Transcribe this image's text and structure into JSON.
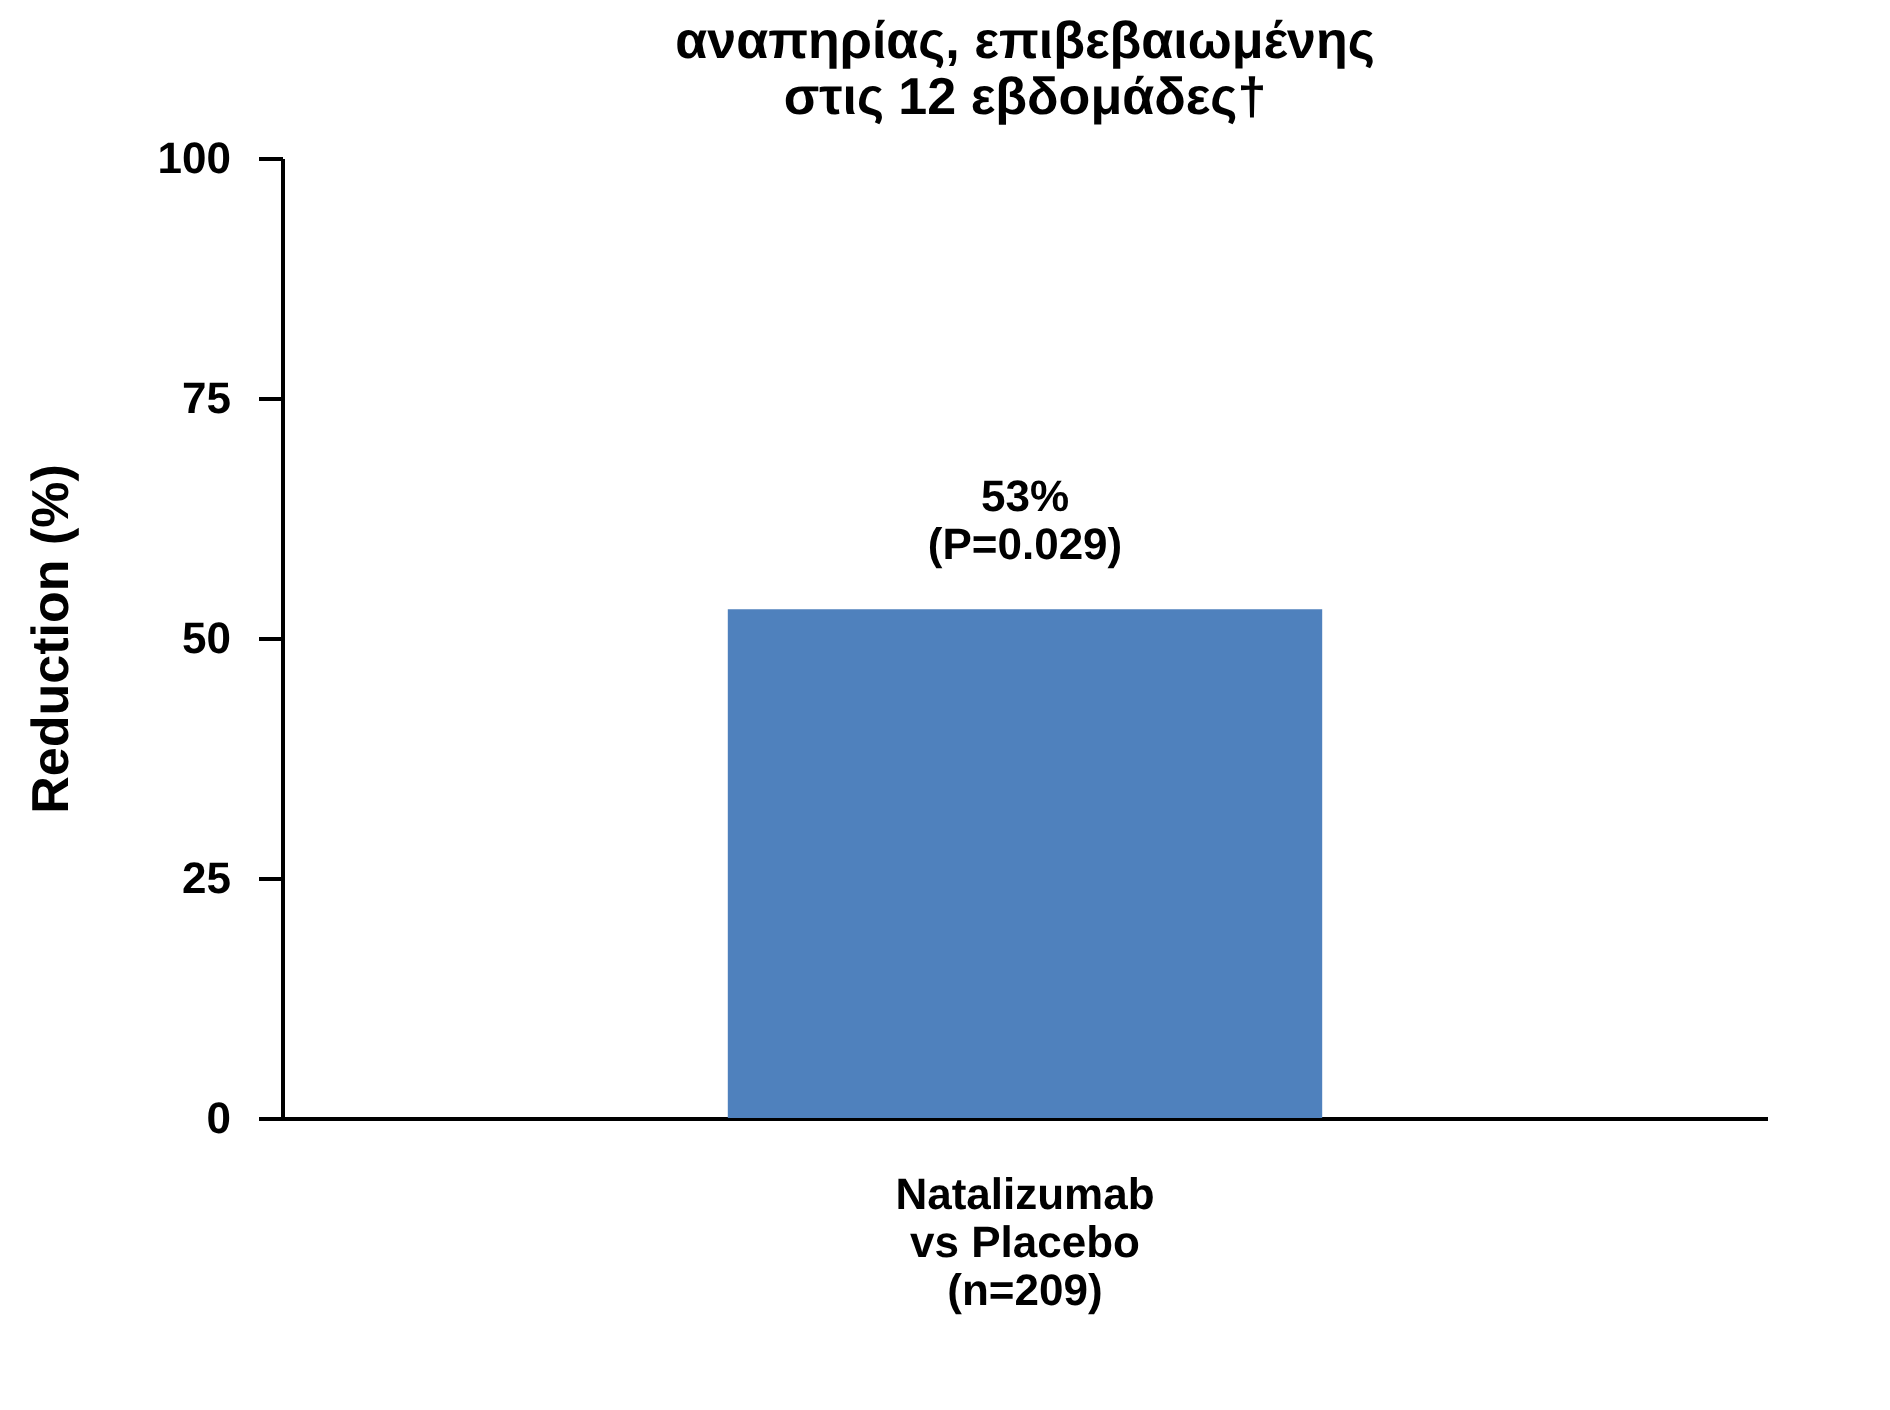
{
  "chart_data": {
    "type": "bar",
    "title": "αναπηρίας, επιβεβαιωμένης\nστις 12 εβδομάδες†",
    "ylabel": "Reduction (%)",
    "categories": [
      "Natalizumab\nvs Placebo\n(n=209)"
    ],
    "values": [
      53
    ],
    "color": "#4f81bd",
    "value_labels": [
      "53%\n(P=0.029)"
    ],
    "ylim": [
      0,
      100
    ],
    "yticks": [
      0,
      25,
      50,
      75,
      100
    ],
    "grid": false
  }
}
